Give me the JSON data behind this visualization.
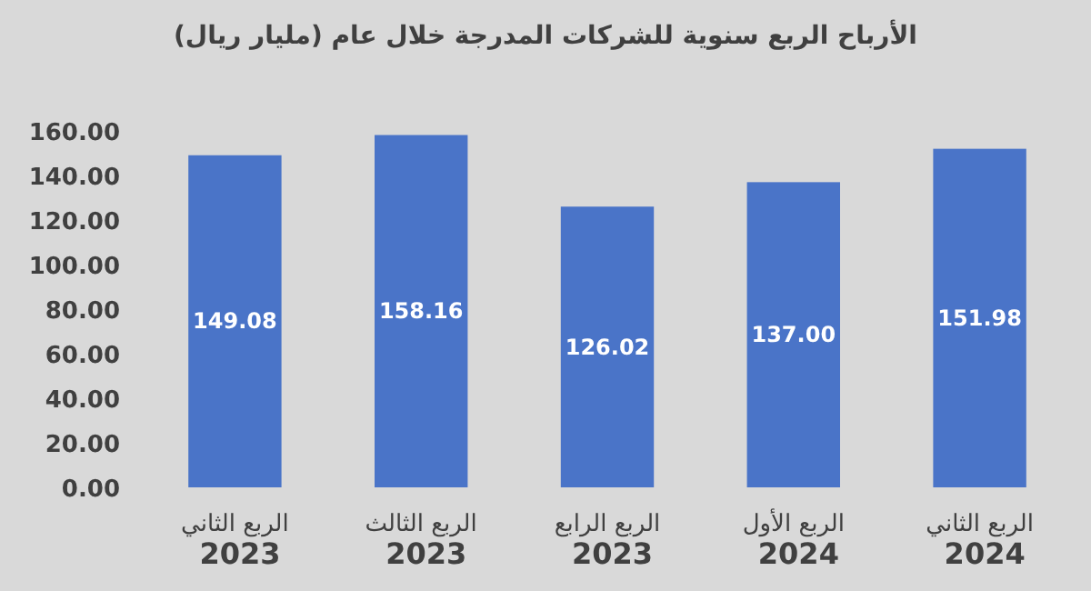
{
  "chart_data": {
    "type": "bar",
    "title": "الأرباح الربع سنوية للشركات المدرجة خلال عام (مليار ريال)",
    "categories": [
      "الربع الثاني 2023",
      "الربع الثالث 2023",
      "الربع الرابع 2023",
      "الربع الأول 2024",
      "الربع الثاني 2024"
    ],
    "values": [
      149.08,
      158.16,
      126.02,
      137,
      151.98
    ],
    "value_labels": [
      "149.08",
      "158.16",
      "126.02",
      "137.00",
      "151.98"
    ],
    "color": "#4a74c8",
    "ylim": [
      0,
      160
    ],
    "yticks": [
      {
        "value": 0,
        "label": "0.00"
      },
      {
        "value": 20,
        "label": "20.00"
      },
      {
        "value": 40,
        "label": "40.00"
      },
      {
        "value": 60,
        "label": "60.00"
      },
      {
        "value": 80,
        "label": "80.00"
      },
      {
        "value": 100,
        "label": "100.00"
      },
      {
        "value": 120,
        "label": "120.00"
      },
      {
        "value": 140,
        "label": "140.00"
      },
      {
        "value": 160,
        "label": "160.00"
      }
    ]
  }
}
